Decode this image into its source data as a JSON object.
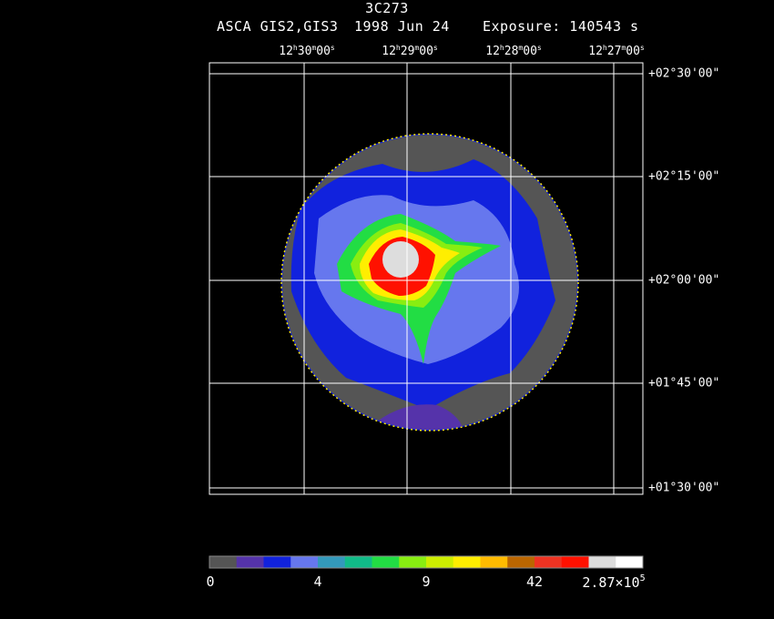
{
  "header": {
    "object": "3C273",
    "instrument": "ASCA GIS2,GIS3",
    "date": "1998 Jun 24",
    "exposure": "Exposure: 140543 s"
  },
  "axes": {
    "ra_ticks": [
      {
        "h": "12",
        "m": "30",
        "s": "00"
      },
      {
        "h": "12",
        "m": "29",
        "s": "00"
      },
      {
        "h": "12",
        "m": "28",
        "s": "00"
      },
      {
        "h": "12",
        "m": "27",
        "s": "00"
      }
    ],
    "dec_ticks": [
      "+02°30'00\"",
      "+02°15'00\"",
      "+02°00'00\"",
      "+01°45'00\"",
      "+01°30'00\""
    ]
  },
  "colorbar": {
    "colors": [
      "#555555",
      "#5533aa",
      "#1122dd",
      "#6677ee",
      "#3399bb",
      "#11bb88",
      "#22dd44",
      "#88ee11",
      "#ccee00",
      "#ffee00",
      "#ffbb00",
      "#bb6600",
      "#ee3322",
      "#ff1100",
      "#dddddd",
      "#ffffff"
    ],
    "labels": [
      "0",
      "4",
      "9",
      "42"
    ],
    "max_label": "2.87×10",
    "max_exp": "5"
  }
}
